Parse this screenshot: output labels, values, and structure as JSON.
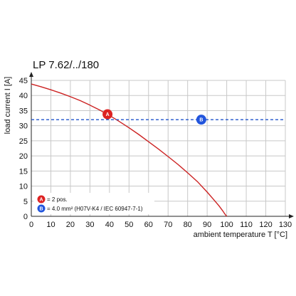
{
  "chart_data": {
    "type": "line",
    "title": "LP 7.62/../180",
    "xlabel": "ambient temperature T [°C]",
    "ylabel": "load current I [A]",
    "xlim": [
      0,
      130
    ],
    "ylim": [
      0,
      45
    ],
    "xticks": [
      0,
      10,
      20,
      30,
      40,
      50,
      60,
      70,
      80,
      90,
      100,
      110,
      120,
      130
    ],
    "yticks": [
      0,
      5,
      10,
      15,
      20,
      25,
      30,
      35,
      40,
      45
    ],
    "xtick_labels": [
      "0",
      "10",
      "20",
      "30",
      "40",
      "50",
      "60",
      "70",
      "80",
      "90",
      "100",
      "110",
      "120",
      "130"
    ],
    "ytick_labels": [
      "0",
      "5",
      "10",
      "15",
      "20",
      "25",
      "30",
      "35",
      "40",
      "45"
    ],
    "grid": true,
    "series": [
      {
        "id": "A",
        "color": "#cc2222",
        "style": "solid",
        "x": [
          0,
          5,
          10,
          15,
          20,
          25,
          30,
          35,
          40,
          45,
          50,
          55,
          60,
          65,
          70,
          75,
          80,
          85,
          90,
          93,
          96,
          98,
          99,
          100
        ],
        "values": [
          43.8,
          42.9,
          41.9,
          40.8,
          39.6,
          38.3,
          36.8,
          35.2,
          33.4,
          31.4,
          29.3,
          27.1,
          24.7,
          22.3,
          19.8,
          17.2,
          14.4,
          11.5,
          8.0,
          5.8,
          3.5,
          1.8,
          0.8,
          0
        ]
      },
      {
        "id": "B",
        "color": "#2255cc",
        "style": "dashed",
        "x": [
          0,
          130
        ],
        "values": [
          32,
          32
        ]
      }
    ],
    "markers": [
      {
        "label": "A",
        "x": 39,
        "y": 33.8,
        "color": "#dd2222"
      },
      {
        "label": "B",
        "x": 87,
        "y": 32,
        "color": "#2255dd"
      }
    ],
    "legend": {
      "placement": "bottom-left",
      "entries": [
        {
          "badge": "A",
          "text": "= 2 pos.",
          "color": "#dd2222"
        },
        {
          "badge": "B",
          "text": "= 4.0 mm² (H07V-K4 / IEC 60947-7-1)",
          "color": "#2255dd"
        }
      ]
    }
  }
}
